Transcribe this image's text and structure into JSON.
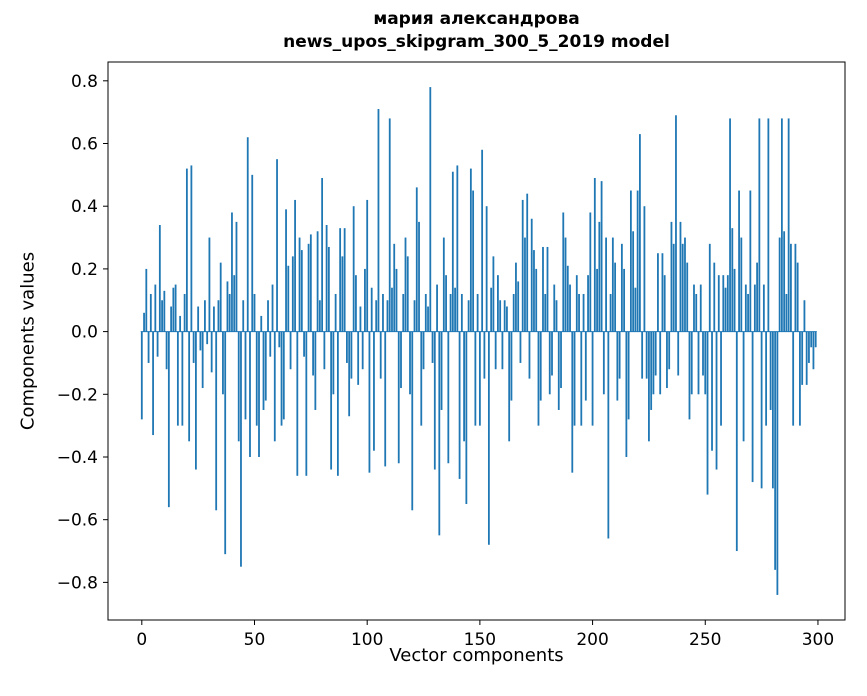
{
  "chart_data": {
    "type": "bar",
    "title_line1": "мария александрова",
    "title_line2": "news_upos_skipgram_300_5_2019 model",
    "xlabel": "Vector components",
    "ylabel": "Components values",
    "x_ticks": [
      0,
      50,
      100,
      150,
      200,
      250,
      300
    ],
    "y_ticks": [
      -0.8,
      -0.6,
      -0.4,
      -0.2,
      0.0,
      0.2,
      0.4,
      0.6,
      0.8
    ],
    "xlim": [
      -15,
      312
    ],
    "ylim": [
      -0.92,
      0.86
    ],
    "bar_color": "#1f77b4",
    "values": [
      -0.28,
      0.06,
      0.2,
      -0.1,
      0.12,
      -0.33,
      0.15,
      -0.08,
      0.34,
      0.1,
      0.13,
      -0.12,
      -0.56,
      0.08,
      0.14,
      0.15,
      -0.3,
      0.05,
      -0.3,
      0.12,
      0.52,
      -0.35,
      0.53,
      -0.1,
      -0.44,
      0.08,
      -0.06,
      -0.18,
      0.1,
      -0.04,
      0.3,
      -0.13,
      0.08,
      -0.57,
      0.1,
      0.22,
      -0.2,
      -0.71,
      0.16,
      0.12,
      0.38,
      0.18,
      0.35,
      -0.35,
      -0.75,
      0.1,
      -0.28,
      0.62,
      -0.4,
      0.5,
      0.12,
      -0.3,
      -0.4,
      0.05,
      -0.25,
      -0.22,
      0.1,
      -0.08,
      0.15,
      -0.35,
      0.55,
      -0.05,
      -0.3,
      -0.28,
      0.39,
      0.21,
      -0.12,
      0.24,
      0.42,
      -0.46,
      0.3,
      0.26,
      -0.08,
      -0.46,
      0.28,
      0.31,
      -0.14,
      -0.25,
      0.32,
      0.1,
      0.49,
      -0.12,
      0.34,
      0.27,
      -0.44,
      -0.2,
      0.12,
      -0.46,
      0.33,
      0.24,
      0.33,
      -0.1,
      -0.27,
      -0.15,
      0.4,
      0.18,
      -0.17,
      0.08,
      -0.12,
      0.2,
      0.42,
      -0.45,
      0.14,
      -0.38,
      0.1,
      0.71,
      -0.15,
      0.12,
      -0.43,
      0.1,
      0.68,
      0.14,
      0.28,
      0.2,
      -0.42,
      -0.18,
      0.12,
      0.3,
      0.24,
      -0.2,
      -0.57,
      0.1,
      0.46,
      0.35,
      -0.3,
      -0.12,
      0.12,
      0.08,
      0.78,
      -0.1,
      -0.44,
      0.15,
      -0.65,
      -0.25,
      0.3,
      0.18,
      -0.42,
      0.12,
      0.51,
      0.14,
      0.53,
      -0.47,
      0.12,
      -0.35,
      -0.55,
      0.1,
      0.52,
      0.45,
      -0.3,
      0.12,
      -0.3,
      0.58,
      -0.15,
      0.4,
      -0.68,
      0.14,
      0.24,
      -0.12,
      0.18,
      0.1,
      -0.12,
      0.1,
      0.08,
      -0.35,
      -0.22,
      0.12,
      0.22,
      0.16,
      -0.1,
      0.42,
      0.3,
      0.44,
      -0.15,
      0.36,
      0.26,
      0.2,
      -0.3,
      -0.22,
      0.27,
      0.12,
      0.27,
      -0.2,
      -0.14,
      0.15,
      0.1,
      -0.25,
      -0.18,
      0.38,
      0.3,
      0.21,
      0.15,
      -0.45,
      -0.3,
      0.18,
      0.12,
      -0.3,
      0.12,
      -0.22,
      0.18,
      0.38,
      -0.3,
      0.49,
      0.2,
      0.35,
      0.48,
      -0.2,
      0.3,
      -0.66,
      0.12,
      0.3,
      0.22,
      -0.22,
      -0.15,
      0.28,
      0.2,
      -0.4,
      -0.28,
      0.45,
      0.32,
      0.14,
      0.45,
      0.63,
      -0.15,
      0.4,
      -0.15,
      -0.35,
      -0.25,
      -0.2,
      -0.14,
      0.25,
      -0.2,
      0.25,
      0.18,
      -0.18,
      -0.12,
      0.35,
      0.28,
      0.69,
      -0.14,
      0.35,
      0.28,
      0.3,
      0.22,
      -0.28,
      -0.2,
      0.15,
      0.12,
      -0.2,
      0.15,
      -0.14,
      -0.2,
      -0.52,
      0.28,
      -0.38,
      0.22,
      -0.44,
      0.18,
      -0.3,
      0.18,
      0.14,
      0.18,
      0.68,
      0.33,
      0.2,
      -0.7,
      0.45,
      0.3,
      -0.35,
      0.15,
      0.12,
      0.45,
      -0.48,
      0.15,
      0.22,
      0.68,
      -0.5,
      0.15,
      -0.3,
      0.68,
      -0.25,
      -0.5,
      -0.76,
      -0.84,
      0.3,
      0.68,
      0.32,
      0.12,
      0.68,
      0.28,
      -0.3,
      0.28,
      0.22,
      -0.3,
      -0.17,
      0.1,
      -0.17,
      -0.1,
      -0.05,
      -0.12,
      -0.05
    ]
  }
}
